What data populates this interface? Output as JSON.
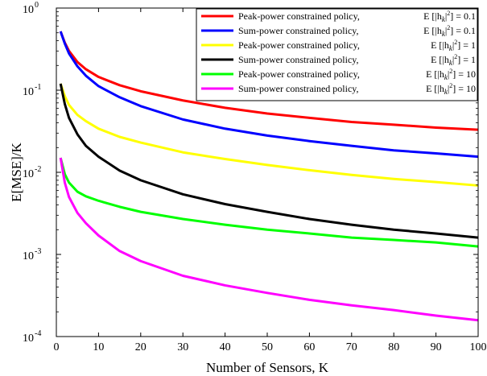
{
  "chart_data": {
    "type": "line",
    "title": "",
    "xlabel": "Number of Sensors, K",
    "ylabel": "E[MSE]/K",
    "xlim": [
      0,
      100
    ],
    "ylim": [
      0.0001,
      1
    ],
    "yscale": "log",
    "grid": false,
    "legend_position": "top-right",
    "x_ticks": [
      0,
      10,
      20,
      30,
      40,
      50,
      60,
      70,
      80,
      90,
      100
    ],
    "y_ticks": [
      {
        "base": "10",
        "exp": "0",
        "value": 1
      },
      {
        "base": "10",
        "exp": "-1",
        "value": 0.1
      },
      {
        "base": "10",
        "exp": "-2",
        "value": 0.01
      },
      {
        "base": "10",
        "exp": "-3",
        "value": 0.001
      },
      {
        "base": "10",
        "exp": "-4",
        "value": 0.0001
      }
    ],
    "x": [
      1,
      2,
      3,
      5,
      7,
      10,
      15,
      20,
      30,
      40,
      50,
      60,
      70,
      80,
      90,
      100
    ],
    "series": [
      {
        "name": "Peak-power constrained policy, E[|hk|²] = 0.1",
        "legend_text": "Peak-power constrained policy,",
        "legend_expr": "= 0.1",
        "color": "#ff0000",
        "values": [
          0.52,
          0.38,
          0.3,
          0.22,
          0.18,
          0.145,
          0.115,
          0.097,
          0.075,
          0.061,
          0.052,
          0.046,
          0.041,
          0.038,
          0.035,
          0.033
        ]
      },
      {
        "name": "Sum-power constrained policy, E[|hk|²] = 0.1",
        "legend_text": "Sum-power constrained policy,",
        "legend_expr": "= 0.1",
        "color": "#0000ff",
        "values": [
          0.52,
          0.37,
          0.28,
          0.195,
          0.15,
          0.112,
          0.082,
          0.064,
          0.044,
          0.034,
          0.028,
          0.024,
          0.021,
          0.0185,
          0.017,
          0.0155
        ]
      },
      {
        "name": "Peak-power constrained policy, E[|hk|²] = 1",
        "legend_text": "Peak-power constrained policy,",
        "legend_expr": "= 1",
        "color": "#ffff00",
        "values": [
          0.12,
          0.085,
          0.066,
          0.05,
          0.042,
          0.034,
          0.027,
          0.023,
          0.0175,
          0.0145,
          0.0123,
          0.0106,
          0.0093,
          0.0083,
          0.0076,
          0.0069
        ]
      },
      {
        "name": "Sum-power constrained policy, E[|hk|²] = 1",
        "legend_text": "Sum-power constrained policy,",
        "legend_expr": "= 1",
        "color": "#000000",
        "values": [
          0.12,
          0.068,
          0.046,
          0.029,
          0.021,
          0.0155,
          0.0105,
          0.008,
          0.0054,
          0.0041,
          0.0033,
          0.0027,
          0.0023,
          0.002,
          0.0018,
          0.0016
        ]
      },
      {
        "name": "Peak-power constrained policy, E[|hk|²] = 10",
        "legend_text": "Peak-power constrained policy,",
        "legend_expr": "= 10",
        "color": "#00ff00",
        "values": [
          0.015,
          0.0095,
          0.0075,
          0.0058,
          0.0051,
          0.0045,
          0.0038,
          0.0033,
          0.0027,
          0.0023,
          0.002,
          0.0018,
          0.0016,
          0.0015,
          0.0014,
          0.00125
        ]
      },
      {
        "name": "Sum-power constrained policy, E[|hk|²] = 10",
        "legend_text": "Sum-power constrained policy,",
        "legend_expr": "= 10",
        "color": "#ff00ff",
        "values": [
          0.015,
          0.0075,
          0.005,
          0.0032,
          0.0024,
          0.0017,
          0.0011,
          0.00083,
          0.00055,
          0.00042,
          0.00034,
          0.00028,
          0.00024,
          0.00021,
          0.00018,
          0.000158
        ]
      }
    ]
  }
}
